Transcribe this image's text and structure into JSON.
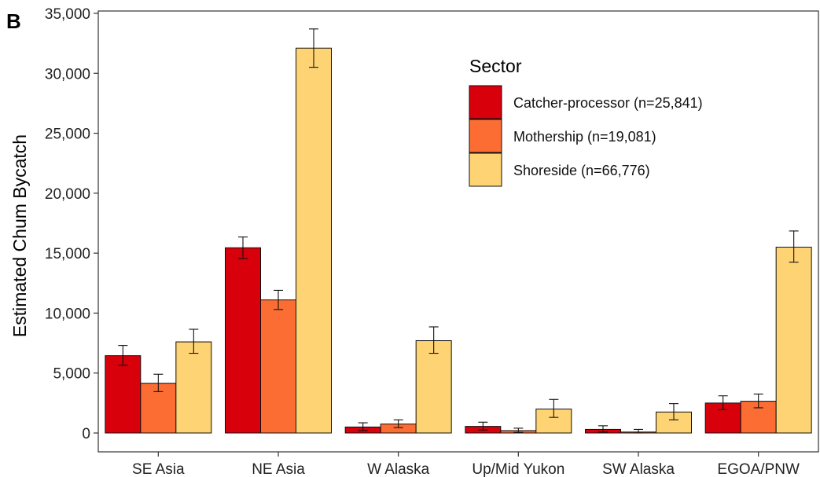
{
  "panel_tag": "B",
  "chart_data": {
    "type": "bar",
    "ylabel": "Estimated Chum Bycatch",
    "xlabel": "",
    "ylim": [
      -1500,
      35000
    ],
    "yticks": [
      0,
      5000,
      10000,
      15000,
      20000,
      25000,
      30000,
      35000
    ],
    "ytick_labels": [
      "0",
      "5,000",
      "10,000",
      "15,000",
      "20,000",
      "25,000",
      "30,000",
      "35,000"
    ],
    "categories": [
      "SE Asia",
      "NE Asia",
      "W Alaska",
      "Up/Mid Yukon",
      "SW Alaska",
      "EGOA/PNW"
    ],
    "legend": {
      "title": "Sector",
      "position": "top-right-inside"
    },
    "grid": false,
    "series": [
      {
        "name": "Catcher-processor (n=25,841)",
        "color": "#D7000B",
        "values": [
          6450,
          15450,
          500,
          550,
          300,
          2500
        ],
        "err_low": [
          5650,
          14550,
          200,
          250,
          80,
          1950
        ],
        "err_high": [
          7300,
          16350,
          850,
          900,
          600,
          3100
        ]
      },
      {
        "name": "Mothership (n=19,081)",
        "color": "#FB6D33",
        "values": [
          4150,
          11100,
          750,
          200,
          80,
          2650
        ],
        "err_low": [
          3450,
          10300,
          450,
          50,
          0,
          2100
        ],
        "err_high": [
          4900,
          11900,
          1100,
          400,
          300,
          3250
        ]
      },
      {
        "name": "Shoreside (n=66,776)",
        "color": "#FDD374",
        "values": [
          7600,
          32100,
          7700,
          2000,
          1750,
          15500
        ],
        "err_low": [
          6650,
          30500,
          6650,
          1300,
          1100,
          14250
        ],
        "err_high": [
          8650,
          33700,
          8850,
          2800,
          2450,
          16850
        ]
      }
    ]
  }
}
